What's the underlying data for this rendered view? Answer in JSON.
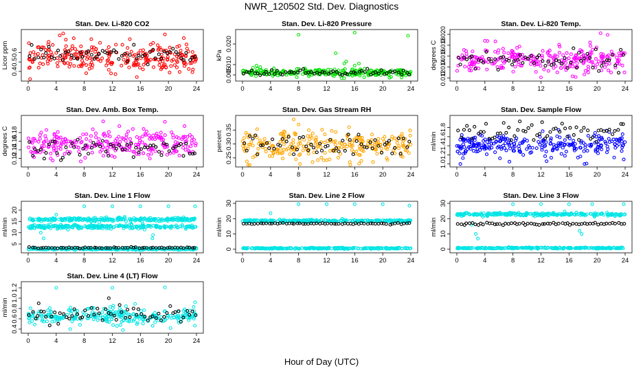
{
  "figure": {
    "title": "NWR_120502  Std. Dev. Diagnostics",
    "xlabel": "Hour of Day (UTC)"
  },
  "colors": {
    "red": "#ff0000",
    "green": "#00e000",
    "magenta": "#ff00ff",
    "orange": "#ffa500",
    "blue": "#0000ff",
    "cyan": "#00e5e5",
    "black": "#000000"
  },
  "chart_data": [
    {
      "type": "scatter",
      "title": "Stan. Dev. Li-820 CO2",
      "ylabel": "Licor ppm",
      "xlim": [
        0,
        24
      ],
      "ylim": [
        0.32,
        0.82
      ],
      "yticks": [
        "0.4",
        "0.5",
        "0.6"
      ],
      "ytick_values": [
        0.4,
        0.5,
        0.6
      ],
      "xticks": [
        "0",
        "4",
        "8",
        "12",
        "16",
        "20",
        "24"
      ],
      "color": "red",
      "band": {
        "mean": 0.55,
        "sd": 0.07
      },
      "outliers": [
        [
          1.5,
          0.44
        ],
        [
          3,
          0.63
        ],
        [
          3.5,
          0.68
        ],
        [
          4.5,
          0.78
        ],
        [
          5,
          0.8
        ],
        [
          6.5,
          0.75
        ],
        [
          9,
          0.74
        ],
        [
          14.5,
          0.74
        ],
        [
          15.5,
          0.34
        ],
        [
          19.5,
          0.79
        ],
        [
          23.5,
          0.42
        ],
        [
          0.2,
          0.56
        ]
      ],
      "black": {
        "mean": 0.57,
        "sd": 0.04,
        "n": 60
      }
    },
    {
      "type": "scatter",
      "title": "Stan. Dev. Li-820 Pressure",
      "ylabel": "kPa",
      "xlim": [
        0,
        24
      ],
      "ylim": [
        0.003,
        0.026
      ],
      "yticks": [
        "0.005",
        "0.010",
        "0.020"
      ],
      "ytick_values": [
        0.005,
        0.01,
        0.02
      ],
      "xticks": [
        "0",
        "4",
        "8",
        "12",
        "16",
        "20",
        "24"
      ],
      "color": "green",
      "band": {
        "mean": 0.006,
        "sd": 0.0009
      },
      "outliers": [
        [
          8,
          0.0245
        ],
        [
          16,
          0.0255
        ],
        [
          23.6,
          0.024
        ],
        [
          13.3,
          0.0155
        ],
        [
          14.5,
          0.0105
        ],
        [
          14.8,
          0.0115
        ],
        [
          16.6,
          0.0105
        ],
        [
          2,
          0.0095
        ],
        [
          1.5,
          0.0085
        ],
        [
          16,
          0.0095
        ]
      ],
      "black": {
        "mean": 0.0062,
        "sd": 0.0007,
        "n": 60
      }
    },
    {
      "type": "scatter",
      "title": "Stan. Dev. Li-820 Temp.",
      "ylabel": "degrees C",
      "xlim": [
        0,
        24
      ],
      "ylim": [
        0.0118,
        0.0205
      ],
      "yticks": [
        "0.012",
        "0.014",
        "0.016",
        "0.018",
        "0.020"
      ],
      "ytick_values": [
        0.012,
        0.014,
        0.016,
        0.018,
        0.02
      ],
      "xticks": [
        "0",
        "4",
        "8",
        "12",
        "16",
        "20",
        "24"
      ],
      "color": "magenta",
      "band": {
        "mean": 0.0153,
        "sd": 0.0011
      },
      "outliers": [
        [
          20.5,
          0.0202
        ],
        [
          21.5,
          0.0199
        ],
        [
          4,
          0.0188
        ],
        [
          5.5,
          0.0187
        ],
        [
          12,
          0.0121
        ],
        [
          16.5,
          0.0123
        ],
        [
          19,
          0.0185
        ]
      ],
      "black": {
        "mean": 0.0153,
        "sd": 0.0009,
        "n": 60
      }
    },
    {
      "type": "scatter",
      "title": "Stan. Dev. Amb. Box Temp.",
      "ylabel": "degrees C",
      "xlim": [
        0,
        24
      ],
      "ylim": [
        0.105,
        0.215
      ],
      "yticks": [
        "0.12",
        "0.14",
        "0.16",
        "0.18"
      ],
      "ytick_values": [
        0.12,
        0.14,
        0.16,
        0.18
      ],
      "xticks": [
        "0",
        "4",
        "8",
        "12",
        "16",
        "20",
        "24"
      ],
      "color": "magenta",
      "band": {
        "mean": 0.152,
        "sd": 0.016
      },
      "outliers": [
        [
          10.7,
          0.206
        ],
        [
          19.5,
          0.205
        ],
        [
          22.3,
          0.195
        ],
        [
          7.5,
          0.113
        ],
        [
          3.5,
          0.115
        ],
        [
          13,
          0.195
        ]
      ],
      "black": {
        "mean": 0.142,
        "sd": 0.01,
        "n": 60
      }
    },
    {
      "type": "scatter",
      "title": "Stan. Dev. Gas Stream RH",
      "ylabel": "percent",
      "xlim": [
        0,
        24
      ],
      "ylim": [
        0.225,
        0.395
      ],
      "yticks": [
        "0.25",
        "0.30",
        "0.35"
      ],
      "ytick_values": [
        0.25,
        0.3,
        0.35
      ],
      "xticks": [
        "0",
        "4",
        "8",
        "12",
        "16",
        "20",
        "24"
      ],
      "color": "orange",
      "band": {
        "mean": 0.295,
        "sd": 0.025
      },
      "outliers": [
        [
          7.3,
          0.388
        ],
        [
          8,
          0.37
        ],
        [
          15.2,
          0.36
        ],
        [
          8.2,
          0.228
        ],
        [
          15.3,
          0.235
        ],
        [
          10,
          0.235
        ]
      ],
      "black": {
        "mean": 0.29,
        "sd": 0.022,
        "n": 60
      }
    },
    {
      "type": "scatter",
      "title": "Stan. Dev. Sample Flow",
      "ylabel": "ml/min",
      "xlim": [
        0,
        24
      ],
      "ylim": [
        0.98,
        2.02
      ],
      "yticks": [
        "1.0",
        "1.2",
        "1.4",
        "1.6",
        "1.8"
      ],
      "ytick_values": [
        1,
        1.2,
        1.4,
        1.6,
        1.8
      ],
      "xticks": [
        "0",
        "4",
        "8",
        "12",
        "16",
        "20",
        "24"
      ],
      "color": "blue",
      "band": {
        "mean": 1.42,
        "sd": 0.12
      },
      "outliers": [
        [
          7.5,
          1.05
        ],
        [
          12.8,
          1.06
        ],
        [
          18.2,
          1.0
        ],
        [
          18.5,
          1.01
        ],
        [
          23.8,
          1.1
        ],
        [
          0.5,
          1.0
        ]
      ],
      "black": {
        "mean": 1.7,
        "sd": 0.12,
        "n": 60
      }
    },
    {
      "type": "scatter",
      "title": "Stan. Dev. Line 1 Flow",
      "ylabel": "ml/min",
      "xlim": [
        0,
        24
      ],
      "ylim": [
        2,
        23
      ],
      "yticks": [
        "5",
        "10",
        "15",
        "20"
      ],
      "ytick_values": [
        5,
        10,
        15,
        20
      ],
      "xticks": [
        "0",
        "4",
        "8",
        "12",
        "16",
        "20",
        "24"
      ],
      "color": "cyan",
      "bands": [
        {
          "mean": 15.8,
          "sd": 0.4
        },
        {
          "mean": 12.7,
          "sd": 0.4
        },
        {
          "mean": 2.8,
          "sd": 0.2
        }
      ],
      "outliers": [
        [
          8,
          21.7
        ],
        [
          12,
          21.7
        ],
        [
          16,
          21.7
        ],
        [
          20,
          21.7
        ],
        [
          23.8,
          21.7
        ],
        [
          4,
          18
        ],
        [
          2.2,
          7.5
        ],
        [
          17.7,
          7.5
        ],
        [
          17.8,
          9
        ],
        [
          1.8,
          10
        ]
      ],
      "black": {
        "mean": 3.3,
        "sd": 0.15,
        "n": 60
      }
    },
    {
      "type": "scatter",
      "title": "Stan. Dev. Line 2 Flow",
      "ylabel": "ml/min",
      "xlim": [
        0,
        24
      ],
      "ylim": [
        -1,
        30
      ],
      "yticks": [
        "0",
        "10",
        "20",
        "30"
      ],
      "ytick_values": [
        0,
        10,
        20,
        30
      ],
      "xticks": [
        "0",
        "4",
        "8",
        "12",
        "16",
        "20",
        "24"
      ],
      "color": "cyan",
      "bands": [
        {
          "mean": 18.5,
          "sd": 0.4
        },
        {
          "mean": 0.6,
          "sd": 0.2
        }
      ],
      "outliers": [
        [
          8,
          29.4
        ],
        [
          12,
          29.4
        ],
        [
          16,
          29.4
        ],
        [
          20,
          29.4
        ],
        [
          23.8,
          28.5
        ],
        [
          4,
          23.5
        ]
      ],
      "black": {
        "mean": 16.8,
        "sd": 0.25,
        "n": 60
      }
    },
    {
      "type": "scatter",
      "title": "Stan. Dev. Line 3 Flow",
      "ylabel": "ml/min",
      "xlim": [
        0,
        24
      ],
      "ylim": [
        -1,
        30
      ],
      "yticks": [
        "0",
        "10",
        "20",
        "30"
      ],
      "ytick_values": [
        0,
        10,
        20,
        30
      ],
      "xticks": [
        "0",
        "4",
        "8",
        "12",
        "16",
        "20",
        "24"
      ],
      "color": "cyan",
      "bands": [
        {
          "mean": 22.8,
          "sd": 0.5
        },
        {
          "mean": 0.8,
          "sd": 0.2
        }
      ],
      "outliers": [
        [
          8,
          29.4
        ],
        [
          12,
          29.4
        ],
        [
          16,
          29.4
        ],
        [
          19.3,
          29.4
        ],
        [
          23.8,
          29.4
        ],
        [
          3,
          7
        ],
        [
          2.7,
          10
        ],
        [
          17.5,
          12
        ],
        [
          17.8,
          10
        ],
        [
          2.1,
          16
        ]
      ],
      "black": {
        "mean": 16.6,
        "sd": 0.5,
        "n": 60
      }
    },
    {
      "type": "scatter",
      "title": "Stan. Dev. Line 4 (LT) Flow",
      "ylabel": "ml/min",
      "xlim": [
        0,
        24
      ],
      "ylim": [
        0.36,
        1.28
      ],
      "yticks": [
        "0.4",
        "0.6",
        "0.8",
        "1.0",
        "1.2"
      ],
      "ytick_values": [
        0.4,
        0.6,
        0.8,
        1.0,
        1.2
      ],
      "xticks": [
        "0",
        "4",
        "8",
        "12",
        "16",
        "20",
        "24"
      ],
      "color": "cyan",
      "band": {
        "mean": 0.65,
        "sd": 0.08
      },
      "outliers": [
        [
          4,
          1.2
        ],
        [
          12,
          1.2
        ],
        [
          19.5,
          1.21
        ],
        [
          23.8,
          0.92
        ],
        [
          6,
          0.4
        ],
        [
          13.5,
          0.38
        ],
        [
          20.3,
          0.42
        ]
      ],
      "black": {
        "mean": 0.66,
        "sd": 0.08,
        "n": 60,
        "extra": [
          [
            11.5,
            1.0
          ],
          [
            1.5,
            0.9
          ]
        ]
      }
    }
  ]
}
